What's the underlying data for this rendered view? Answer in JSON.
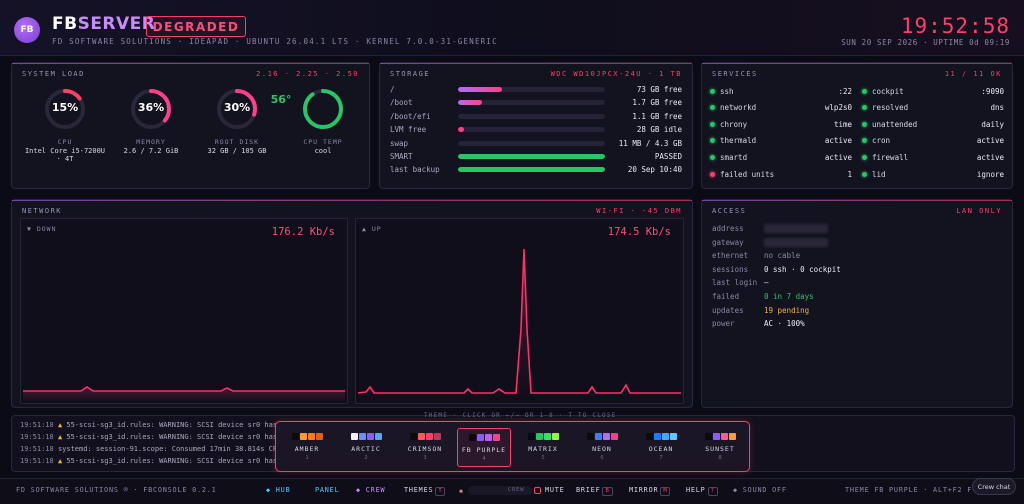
{
  "header": {
    "logo": "FB",
    "brand_a": "FB",
    "brand_b": "SERVER",
    "status": "DEGRADED",
    "subtitle": "FD SOFTWARE SOLUTIONS · IDEAPAD · UBUNTU 26.04.1 LTS · KERNEL 7.0.0-31-GENERIC",
    "clock": "19:52:58",
    "uptime": "SUN 20 SEP 2026 · UPTIME 0d 09:19"
  },
  "system": {
    "title": "SYSTEM LOAD",
    "meta": "2.16 · 2.25 · 2.50",
    "gauges": [
      {
        "value": "15%",
        "pct": 0.15,
        "label": "CPU",
        "sub": "Intel Core i5-7200U · 4T",
        "color": "#ff3f69"
      },
      {
        "value": "36%",
        "pct": 0.36,
        "label": "MEMORY",
        "sub": "2.6 / 7.2 GiB",
        "color": "#ff3f8a"
      },
      {
        "value": "30%",
        "pct": 0.3,
        "label": "ROOT DISK",
        "sub": "32 GB / 105 GB",
        "color": "#ff3f8a"
      },
      {
        "value": "56°",
        "pct": 0.9,
        "label": "CPU TEMP",
        "sub": "cool",
        "color": "#27c766"
      }
    ]
  },
  "storage": {
    "title": "STORAGE",
    "meta": "WDC WD10JPCX-24U · 1 TB",
    "rows": [
      {
        "label": "/",
        "value": "73 GB free",
        "pct": 0.3,
        "color": "linear-gradient(90deg,#b36cf5,#ff3f8a)"
      },
      {
        "label": "/boot",
        "value": "1.7 GB free",
        "pct": 0.16,
        "color": "linear-gradient(90deg,#b36cf5,#ff3f8a)"
      },
      {
        "label": "/boot/efi",
        "value": "1.1 GB free",
        "pct": 0.0,
        "color": "#ff3f8a"
      },
      {
        "label": "LVM free",
        "value": "28 GB idle",
        "pct": 0.04,
        "color": "#ff3f8a"
      },
      {
        "label": "swap",
        "value": "11 MB / 4.3 GB",
        "pct": 0.0,
        "color": "#ff3f8a"
      },
      {
        "label": "SMART",
        "value": "PASSED",
        "pct": 1.0,
        "color": "#27c766"
      },
      {
        "label": "last backup",
        "value": "20 Sep 10:40",
        "pct": 1.0,
        "color": "#27c766"
      }
    ]
  },
  "services": {
    "title": "SERVICES",
    "meta": "11 / 11 OK",
    "left": [
      {
        "name": "ssh",
        "state": ":22",
        "ok": true
      },
      {
        "name": "networkd",
        "state": "wlp2s0",
        "ok": true
      },
      {
        "name": "chrony",
        "state": "time",
        "ok": true
      },
      {
        "name": "thermald",
        "state": "active",
        "ok": true
      },
      {
        "name": "smartd",
        "state": "active",
        "ok": true
      },
      {
        "name": "failed units",
        "state": "1",
        "ok": false
      }
    ],
    "right": [
      {
        "name": "cockpit",
        "state": ":9090",
        "ok": true
      },
      {
        "name": "resolved",
        "state": "dns",
        "ok": true
      },
      {
        "name": "unattended",
        "state": "daily",
        "ok": true
      },
      {
        "name": "cron",
        "state": "active",
        "ok": true
      },
      {
        "name": "firewall",
        "state": "active",
        "ok": true
      },
      {
        "name": "lid",
        "state": "ignore",
        "ok": true
      }
    ]
  },
  "network": {
    "title": "NETWORK",
    "meta": "WI-FI · -45 DBM",
    "down_label": "▼ DOWN",
    "down_rate": "176.2 Kb/s",
    "up_label": "▲ UP",
    "up_rate": "174.5 Kb/s"
  },
  "access": {
    "title": "ACCESS",
    "meta": "LAN ONLY",
    "rows": [
      {
        "key": "address",
        "value": "",
        "color": "#eaeaf2",
        "blur": true
      },
      {
        "key": "gateway",
        "value": "",
        "color": "#eaeaf2",
        "blur": true
      },
      {
        "key": "ethernet",
        "value": "no cable",
        "color": "#8b87a6",
        "blur": false
      },
      {
        "key": "sessions",
        "value": "0 ssh · 0 cockpit",
        "color": "#eaeaf2",
        "blur": false
      },
      {
        "key": "last login",
        "value": "—",
        "color": "#eaeaf2",
        "blur": false
      },
      {
        "key": "failed",
        "value": "0 in 7 days",
        "color": "#27c766",
        "blur": false
      },
      {
        "key": "updates",
        "value": "19 pending",
        "color": "#f0b440",
        "blur": false
      },
      {
        "key": "power",
        "value": "AC · 100%",
        "color": "#eaeaf2",
        "blur": false
      }
    ]
  },
  "log": {
    "lines": [
      {
        "time": "19:51:18",
        "warn": true,
        "text": "55-scsi-sg3_id.rules: WARNING: SCSI device sr0 has"
      },
      {
        "time": "19:51:18",
        "warn": true,
        "text": "55-scsi-sg3_id.rules: WARNING: SCSI device sr0 has"
      },
      {
        "time": "19:51:18",
        "warn": false,
        "text": "systemd: session-91.scope: Consumed 17min 38.814s CPU"
      },
      {
        "time": "19:51:18",
        "warn": true,
        "text": "55-scsi-sg3_id.rules: WARNING: SCSI device sr0 has"
      }
    ]
  },
  "themes": {
    "header": "THEME · CLICK OR ←/→ OR 1-8 · T TO CLOSE",
    "items": [
      {
        "name": "AMBER",
        "num": "1",
        "colors": [
          "#0b0b0b",
          "#ff9a2f",
          "#ff7a1a",
          "#e0601a"
        ],
        "selected": false
      },
      {
        "name": "ARCTIC",
        "num": "2",
        "colors": [
          "#f2f4f8",
          "#6e8cff",
          "#8a5cff",
          "#4ea6ff"
        ],
        "selected": false
      },
      {
        "name": "CRIMSON",
        "num": "3",
        "colors": [
          "#0b0b0b",
          "#ff5a5a",
          "#ff3f69",
          "#b83a60"
        ],
        "selected": false
      },
      {
        "name": "FB PURPLE",
        "num": "4",
        "colors": [
          "#0b0b0b",
          "#8a5cff",
          "#c05cff",
          "#ff3f8a"
        ],
        "selected": true
      },
      {
        "name": "MATRIX",
        "num": "5",
        "colors": [
          "#0b0b0b",
          "#27c766",
          "#35e06a",
          "#8dff3a"
        ],
        "selected": false
      },
      {
        "name": "NEON",
        "num": "6",
        "colors": [
          "#0b0b0b",
          "#3f7cff",
          "#b36cf5",
          "#ff3f8a"
        ],
        "selected": false
      },
      {
        "name": "OCEAN",
        "num": "7",
        "colors": [
          "#0b0b0b",
          "#1f7aff",
          "#3fa9ff",
          "#62c8ff"
        ],
        "selected": false
      },
      {
        "name": "SUNSET",
        "num": "8",
        "colors": [
          "#0b0b0b",
          "#8a5cff",
          "#ff5a8a",
          "#ff9a3a"
        ],
        "selected": false
      }
    ]
  },
  "footer": {
    "brand": "FD SOFTWARE SOLUTIONS ® · FBCONSOLE 0.2.1",
    "hub": "◆ HUB",
    "panel": "PANEL",
    "crew": "◆ CREW",
    "themes": "THEMES",
    "themes_key": "T",
    "crew_pill": "CREW",
    "mute": "MUTE",
    "brief": "BRIEF",
    "brief_key": "B",
    "mirror": "MIRROR",
    "mirror_key": "M",
    "help": "HELP",
    "help_key": "?",
    "sound": "◆ SOUND OFF",
    "theme_info": "THEME FB PURPLE · ALT+F2 F",
    "crew_chat": "Crew chat"
  }
}
